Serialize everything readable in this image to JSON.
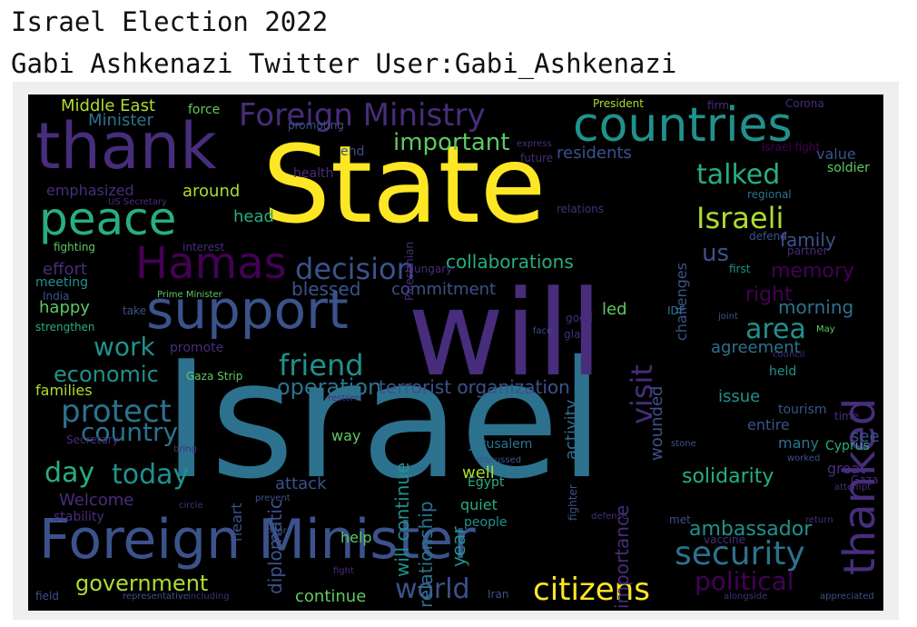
{
  "title": "Israel Election 2022",
  "subtitle": "Gabi Ashkenazi Twitter User:Gabi_Ashkenazi",
  "wordcloud": {
    "background": "#000000",
    "palette": [
      "#440154",
      "#472d7b",
      "#3b528b",
      "#2c728e",
      "#21918c",
      "#28ae80",
      "#5ec962",
      "#addc30",
      "#fde725"
    ],
    "words": [
      {
        "text": "Israel",
        "color": "#2c728e",
        "orient": "h"
      },
      {
        "text": "State",
        "color": "#fde725",
        "orient": "h"
      },
      {
        "text": "will",
        "color": "#472d7b",
        "orient": "h"
      },
      {
        "text": "Foreign Minister",
        "color": "#3b528b",
        "orient": "h"
      },
      {
        "text": "thank",
        "color": "#472d7b",
        "orient": "h"
      },
      {
        "text": "countries",
        "color": "#21918c",
        "orient": "h"
      },
      {
        "text": "support",
        "color": "#3b528b",
        "orient": "h"
      },
      {
        "text": "peace",
        "color": "#28ae80",
        "orient": "h"
      },
      {
        "text": "thanked",
        "color": "#472d7b",
        "orient": "v"
      },
      {
        "text": "Foreign Ministry",
        "color": "#472d7b",
        "orient": "h"
      },
      {
        "text": "Hamas",
        "color": "#440154",
        "orient": "h"
      },
      {
        "text": "security",
        "color": "#2c728e",
        "orient": "h"
      },
      {
        "text": "citizens",
        "color": "#fde725",
        "orient": "h"
      },
      {
        "text": "decision",
        "color": "#3b528b",
        "orient": "h"
      },
      {
        "text": "Israeli",
        "color": "#addc30",
        "orient": "h"
      },
      {
        "text": "talked",
        "color": "#28ae80",
        "orient": "h"
      },
      {
        "text": "important",
        "color": "#5ec962",
        "orient": "h"
      },
      {
        "text": "friend",
        "color": "#21918c",
        "orient": "h"
      },
      {
        "text": "protect",
        "color": "#2c728e",
        "orient": "h"
      },
      {
        "text": "work",
        "color": "#21918c",
        "orient": "h"
      },
      {
        "text": "area",
        "color": "#21918c",
        "orient": "h"
      },
      {
        "text": "political",
        "color": "#440154",
        "orient": "h"
      },
      {
        "text": "world",
        "color": "#3b528b",
        "orient": "h"
      },
      {
        "text": "government",
        "color": "#addc30",
        "orient": "h"
      },
      {
        "text": "day",
        "color": "#28ae80",
        "orient": "h"
      },
      {
        "text": "today",
        "color": "#21918c",
        "orient": "h"
      },
      {
        "text": "country",
        "color": "#2c728e",
        "orient": "h"
      },
      {
        "text": "economic",
        "color": "#21918c",
        "orient": "h"
      },
      {
        "text": "operation",
        "color": "#2c728e",
        "orient": "h"
      },
      {
        "text": "terrorist organization",
        "color": "#3b528b",
        "orient": "h"
      },
      {
        "text": "collaborations",
        "color": "#28ae80",
        "orient": "h"
      },
      {
        "text": "us",
        "color": "#3b528b",
        "orient": "h"
      },
      {
        "text": "memory",
        "color": "#440154",
        "orient": "h"
      },
      {
        "text": "family",
        "color": "#3b528b",
        "orient": "h"
      },
      {
        "text": "right",
        "color": "#440154",
        "orient": "h"
      },
      {
        "text": "morning",
        "color": "#2c728e",
        "orient": "h"
      },
      {
        "text": "agreement",
        "color": "#2c728e",
        "orient": "h"
      },
      {
        "text": "blessed",
        "color": "#3b528b",
        "orient": "h"
      },
      {
        "text": "commitment",
        "color": "#3b528b",
        "orient": "h"
      },
      {
        "text": "visit",
        "color": "#472d7b",
        "orient": "v"
      },
      {
        "text": "relationship",
        "color": "#2c728e",
        "orient": "v"
      },
      {
        "text": "will continue",
        "color": "#21918c",
        "orient": "v"
      },
      {
        "text": "diplomatic",
        "color": "#3b528b",
        "orient": "v"
      },
      {
        "text": "year",
        "color": "#21918c",
        "orient": "v"
      },
      {
        "text": "wounded",
        "color": "#3b528b",
        "orient": "v"
      },
      {
        "text": "importance",
        "color": "#472d7b",
        "orient": "v"
      },
      {
        "text": "activity",
        "color": "#2c728e",
        "orient": "v"
      },
      {
        "text": "challenges",
        "color": "#3b528b",
        "orient": "v"
      },
      {
        "text": "ambassador",
        "color": "#21918c",
        "orient": "h"
      },
      {
        "text": "solidarity",
        "color": "#28ae80",
        "orient": "h"
      },
      {
        "text": "continue",
        "color": "#5ec962",
        "orient": "h"
      },
      {
        "text": "Middle East",
        "color": "#addc30",
        "orient": "h"
      },
      {
        "text": "Minister",
        "color": "#2c728e",
        "orient": "h"
      },
      {
        "text": "residents",
        "color": "#3b528b",
        "orient": "h"
      },
      {
        "text": "head",
        "color": "#28ae80",
        "orient": "h"
      },
      {
        "text": "around",
        "color": "#addc30",
        "orient": "h"
      },
      {
        "text": "effort",
        "color": "#472d7b",
        "orient": "h"
      },
      {
        "text": "emphasized",
        "color": "#472d7b",
        "orient": "h"
      },
      {
        "text": "happy",
        "color": "#5ec962",
        "orient": "h"
      },
      {
        "text": "issue",
        "color": "#21918c",
        "orient": "h"
      },
      {
        "text": "entire",
        "color": "#3b528b",
        "orient": "h"
      },
      {
        "text": "led",
        "color": "#5ec962",
        "orient": "h"
      },
      {
        "text": "families",
        "color": "#addc30",
        "orient": "h"
      },
      {
        "text": "Welcome",
        "color": "#472d7b",
        "orient": "h"
      },
      {
        "text": "attack",
        "color": "#3b528b",
        "orient": "h"
      },
      {
        "text": "well",
        "color": "#addc30",
        "orient": "h"
      },
      {
        "text": "help",
        "color": "#5ec962",
        "orient": "h"
      },
      {
        "text": "quiet",
        "color": "#28ae80",
        "orient": "h"
      },
      {
        "text": "Jerusalem",
        "color": "#2c728e",
        "orient": "h"
      },
      {
        "text": "Egypt",
        "color": "#28ae80",
        "orient": "h"
      },
      {
        "text": "see",
        "color": "#3b528b",
        "orient": "h"
      },
      {
        "text": "great",
        "color": "#472d7b",
        "orient": "h"
      },
      {
        "text": "many",
        "color": "#2c728e",
        "orient": "h"
      },
      {
        "text": "way",
        "color": "#5ec962",
        "orient": "h"
      },
      {
        "text": "heart",
        "color": "#3b528b",
        "orient": "v"
      },
      {
        "text": "stability",
        "color": "#472d7b",
        "orient": "h"
      },
      {
        "text": "promote",
        "color": "#472d7b",
        "orient": "h"
      },
      {
        "text": "Gaza Strip",
        "color": "#5ec962",
        "orient": "h"
      },
      {
        "text": "strengthen",
        "color": "#28ae80",
        "orient": "h"
      },
      {
        "text": "meeting",
        "color": "#21918c",
        "orient": "h"
      },
      {
        "text": "India",
        "color": "#3b528b",
        "orient": "h"
      },
      {
        "text": "interest",
        "color": "#472d7b",
        "orient": "h"
      },
      {
        "text": "fighting",
        "color": "#5ec962",
        "orient": "h"
      },
      {
        "text": "health",
        "color": "#472d7b",
        "orient": "h"
      },
      {
        "text": "end",
        "color": "#3b528b",
        "orient": "h"
      },
      {
        "text": "future",
        "color": "#472d7b",
        "orient": "h"
      },
      {
        "text": "force",
        "color": "#5ec962",
        "orient": "h"
      },
      {
        "text": "President",
        "color": "#addc30",
        "orient": "h"
      },
      {
        "text": "firm",
        "color": "#472d7b",
        "orient": "h"
      },
      {
        "text": "Corona",
        "color": "#472d7b",
        "orient": "h"
      },
      {
        "text": "value",
        "color": "#3b528b",
        "orient": "h"
      },
      {
        "text": "soldier",
        "color": "#5ec962",
        "orient": "h"
      },
      {
        "text": "Israel fight",
        "color": "#440154",
        "orient": "h"
      },
      {
        "text": "regional",
        "color": "#2c728e",
        "orient": "h"
      },
      {
        "text": "defend",
        "color": "#3b528b",
        "orient": "h"
      },
      {
        "text": "partner",
        "color": "#472d7b",
        "orient": "h"
      },
      {
        "text": "first",
        "color": "#21918c",
        "orient": "h"
      },
      {
        "text": "IDF",
        "color": "#2c728e",
        "orient": "h"
      },
      {
        "text": "joint",
        "color": "#3b528b",
        "orient": "h"
      },
      {
        "text": "held",
        "color": "#21918c",
        "orient": "h"
      },
      {
        "text": "council",
        "color": "#472d7b",
        "orient": "h"
      },
      {
        "text": "tourism",
        "color": "#3b528b",
        "orient": "h"
      },
      {
        "text": "time",
        "color": "#472d7b",
        "orient": "h"
      },
      {
        "text": "Cyprus",
        "color": "#28ae80",
        "orient": "h"
      },
      {
        "text": "vaccine",
        "color": "#472d7b",
        "orient": "h"
      },
      {
        "text": "met",
        "color": "#3b528b",
        "orient": "h"
      },
      {
        "text": "people",
        "color": "#21918c",
        "orient": "h"
      },
      {
        "text": "Iran",
        "color": "#3b528b",
        "orient": "h"
      },
      {
        "text": "fight",
        "color": "#472d7b",
        "orient": "h"
      },
      {
        "text": "field",
        "color": "#3b528b",
        "orient": "h"
      },
      {
        "text": "including",
        "color": "#472d7b",
        "orient": "h"
      },
      {
        "text": "representative",
        "color": "#3b528b",
        "orient": "h"
      },
      {
        "text": "alongside",
        "color": "#472d7b",
        "orient": "h"
      },
      {
        "text": "appreciated",
        "color": "#3b528b",
        "orient": "h"
      },
      {
        "text": "attempt",
        "color": "#472d7b",
        "orient": "h"
      },
      {
        "text": "return",
        "color": "#472d7b",
        "orient": "h"
      },
      {
        "text": "worked",
        "color": "#3b528b",
        "orient": "h"
      },
      {
        "text": "stone",
        "color": "#3b528b",
        "orient": "h"
      },
      {
        "text": "discussed",
        "color": "#3b528b",
        "orient": "h"
      },
      {
        "text": "restore",
        "color": "#472d7b",
        "orient": "h"
      },
      {
        "text": "prevent",
        "color": "#3b528b",
        "orient": "h"
      },
      {
        "text": "Secretary",
        "color": "#472d7b",
        "orient": "h"
      },
      {
        "text": "US Secretary",
        "color": "#472d7b",
        "orient": "h"
      },
      {
        "text": "Prime Minister",
        "color": "#5ec962",
        "orient": "h"
      },
      {
        "text": "take",
        "color": "#3b528b",
        "orient": "h"
      },
      {
        "text": "face",
        "color": "#3b528b",
        "orient": "h"
      },
      {
        "text": "glad",
        "color": "#472d7b",
        "orient": "h"
      },
      {
        "text": "good",
        "color": "#472d7b",
        "orient": "h"
      },
      {
        "text": "May",
        "color": "#5ec962",
        "orient": "h"
      },
      {
        "text": "relations",
        "color": "#472d7b",
        "orient": "h"
      },
      {
        "text": "Hungary",
        "color": "#472d7b",
        "orient": "h"
      },
      {
        "text": "express",
        "color": "#472d7b",
        "orient": "h"
      },
      {
        "text": "promoting",
        "color": "#3b528b",
        "orient": "h"
      },
      {
        "text": "Palestinian",
        "color": "#472d7b",
        "orient": "v"
      },
      {
        "text": "fighter",
        "color": "#3b528b",
        "orient": "v"
      },
      {
        "text": "bring",
        "color": "#472d7b",
        "orient": "h"
      },
      {
        "text": "circle",
        "color": "#472d7b",
        "orient": "h"
      },
      {
        "text": "near",
        "color": "#3b528b",
        "orient": "h"
      },
      {
        "text": "defense",
        "color": "#472d7b",
        "orient": "h"
      },
      {
        "text": "Gaza",
        "color": "#472d7b",
        "orient": "h"
      }
    ]
  }
}
